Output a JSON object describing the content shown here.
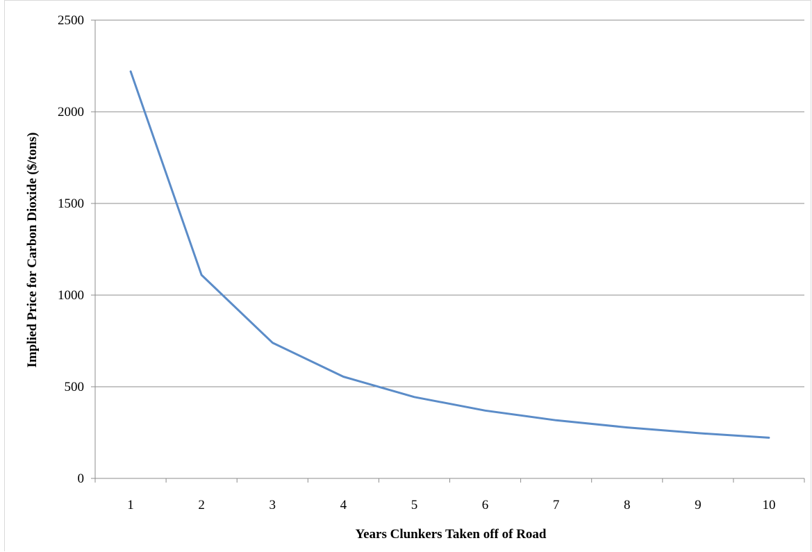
{
  "chart_data": {
    "type": "line",
    "title": "",
    "xlabel": "Years Clunkers Taken off of Road",
    "ylabel": "Implied Price for Carbon Dioxide ($/tons)",
    "categories": [
      "1",
      "2",
      "3",
      "4",
      "5",
      "6",
      "7",
      "8",
      "9",
      "10"
    ],
    "series": [
      {
        "values": [
          2220,
          1110,
          740,
          555,
          444,
          370,
          317,
          278,
          247,
          222
        ],
        "color": "#5b8cc8"
      }
    ],
    "ylim": [
      0,
      2500
    ],
    "yticks": [
      "0",
      "500",
      "1000",
      "1500",
      "2000",
      "2500"
    ],
    "grid": true,
    "legend": "none",
    "gridline_color": "#8c8c8c",
    "axis_color": "#8c8c8c"
  }
}
